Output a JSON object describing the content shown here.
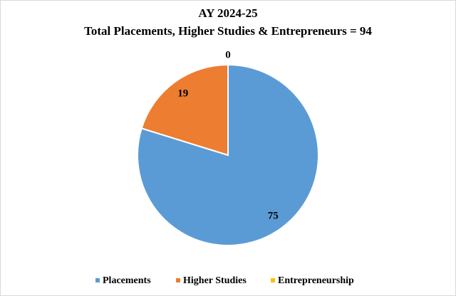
{
  "chart_data": {
    "type": "pie",
    "title": "AY 2024-25",
    "subtitle": "Total Placements, Higher Studies & Entrepreneurs = 94",
    "categories": [
      "Placements",
      "Higher Studies",
      "Entrepreneurship"
    ],
    "values": [
      75,
      19,
      0
    ],
    "colors": [
      "#5b9bd5",
      "#ed7d31",
      "#ffc000"
    ],
    "legend": "bottom"
  }
}
